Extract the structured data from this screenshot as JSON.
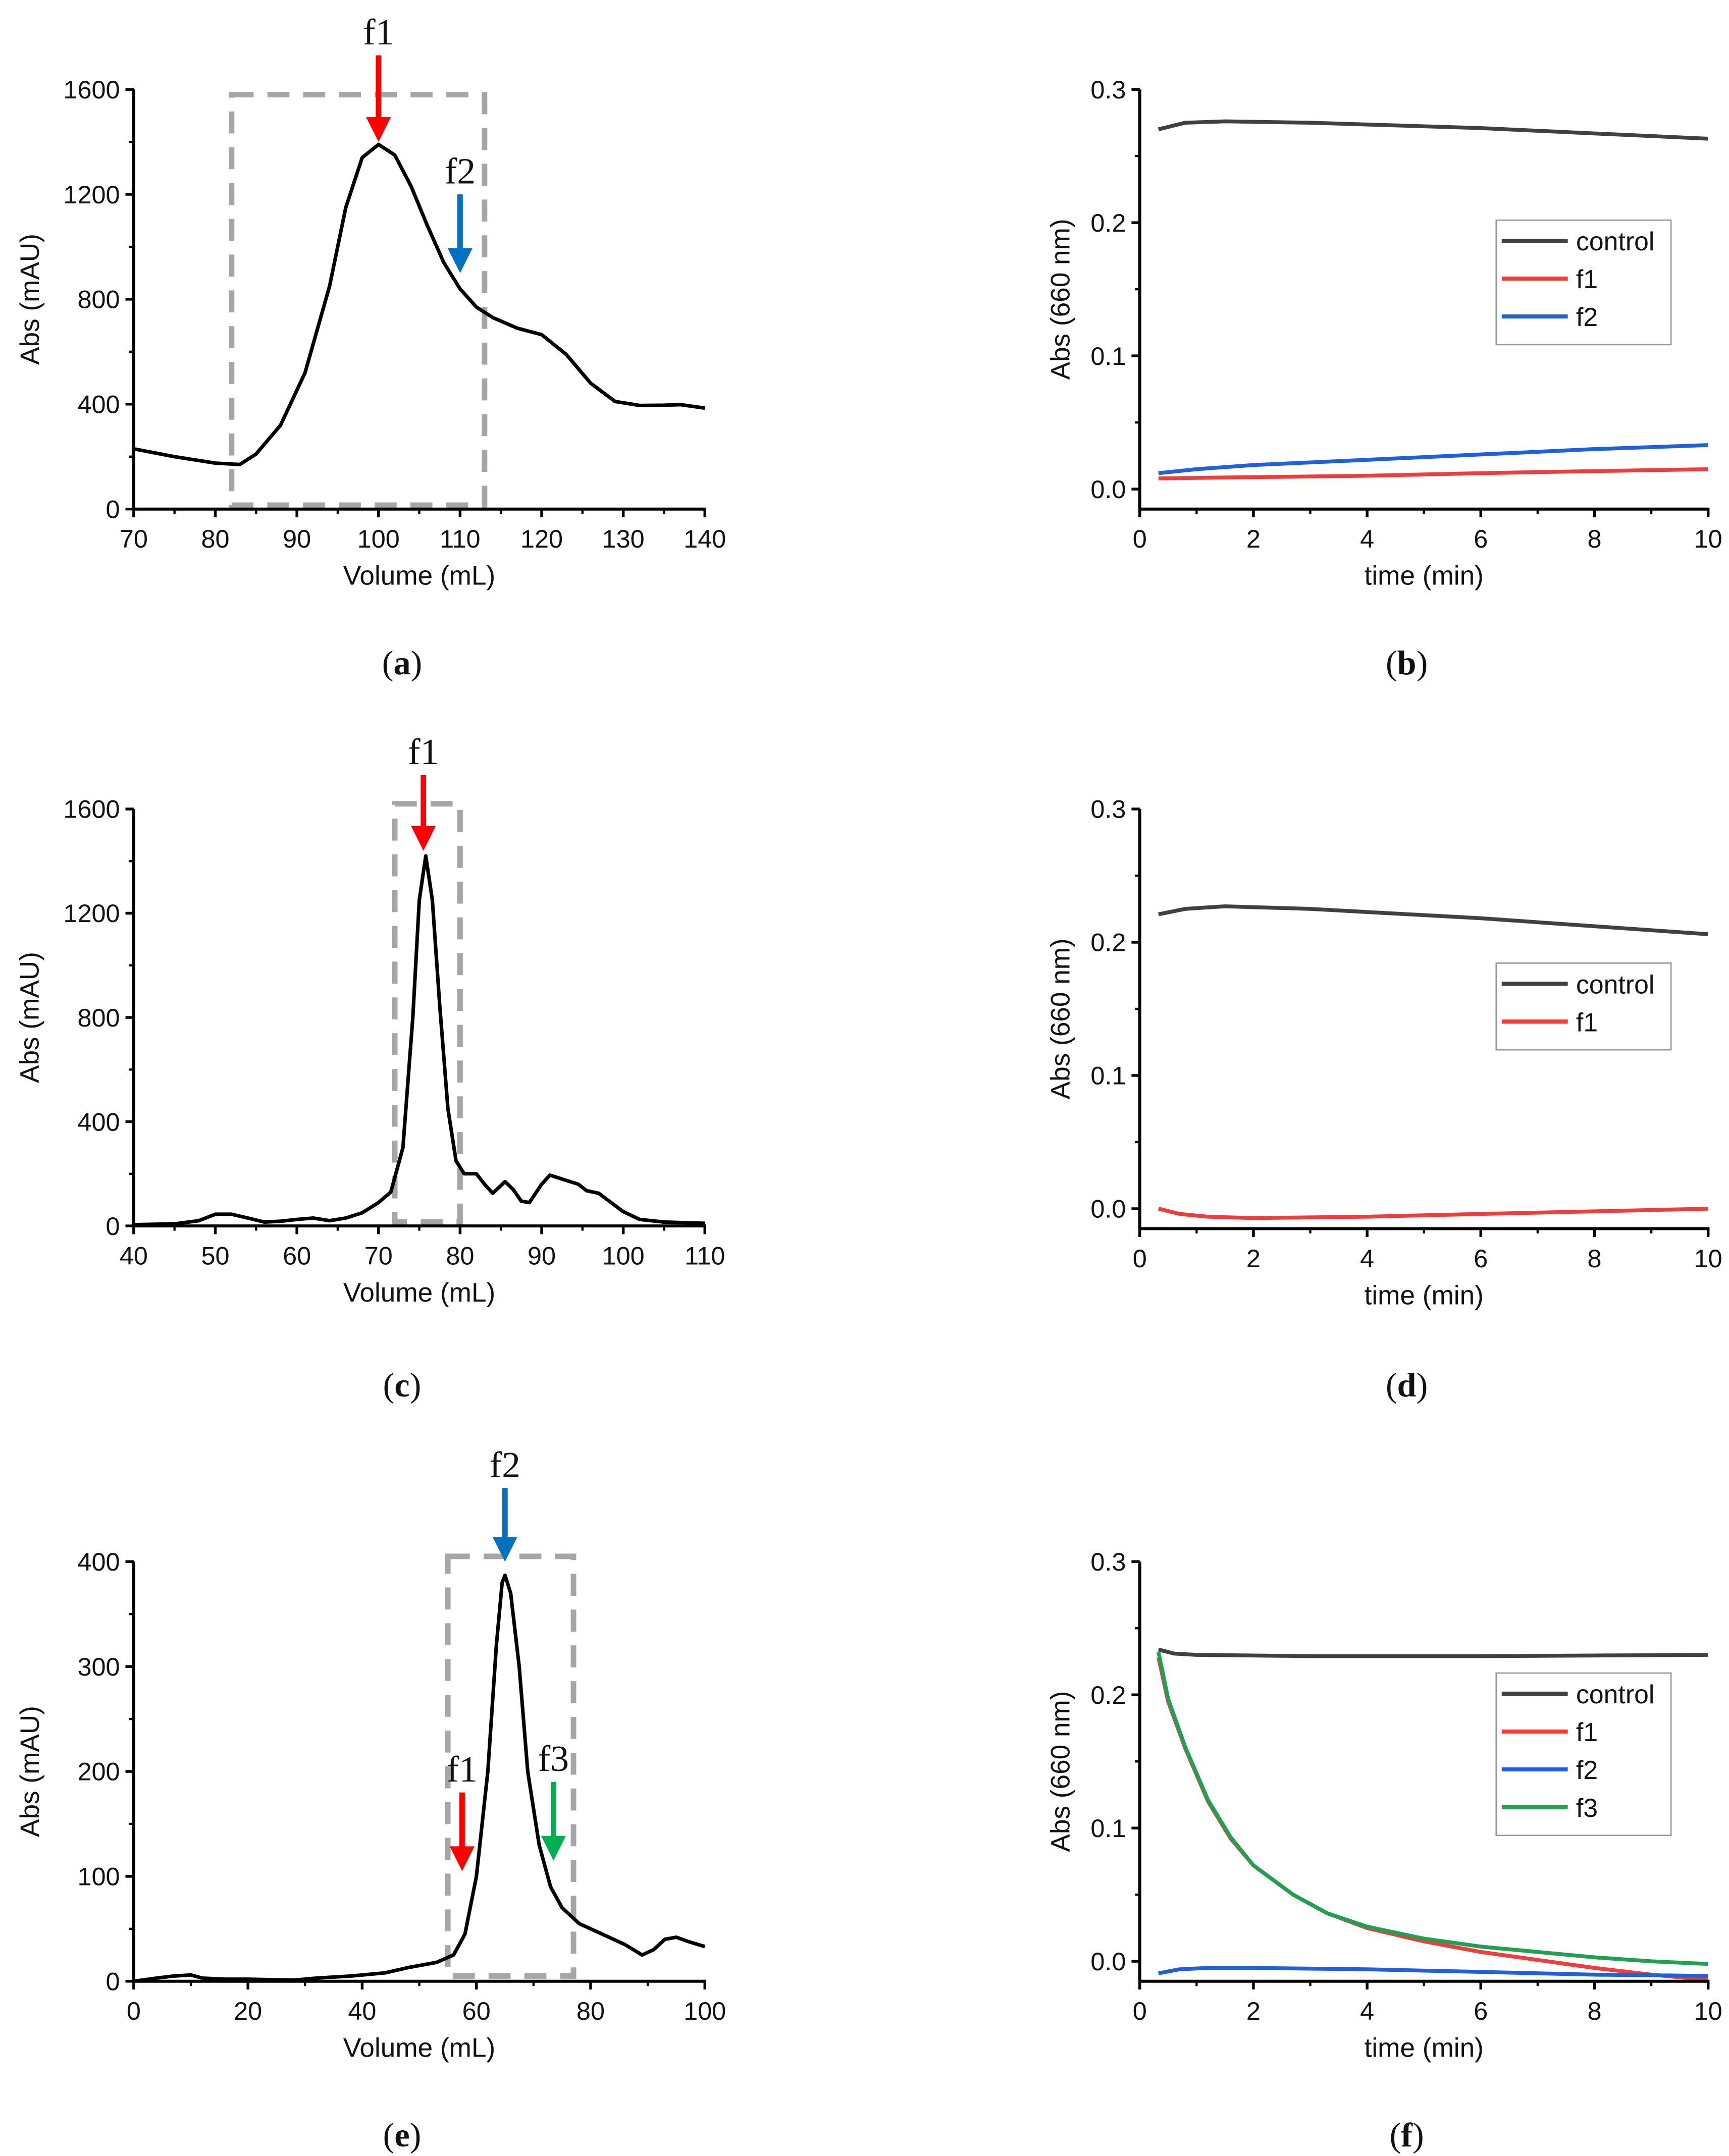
{
  "chart_data": [
    {
      "id": "a",
      "type": "line",
      "caption": [
        "(",
        "a",
        ")"
      ],
      "xlabel": "Volume (mL)",
      "ylabel": "Abs (mAU)",
      "xlim": [
        70,
        140
      ],
      "ylim": [
        0,
        1600
      ],
      "xticks": [
        "70",
        "80",
        "90",
        "100",
        "110",
        "120",
        "130",
        "140"
      ],
      "yticks": [
        "0",
        "400",
        "800",
        "1200",
        "1600"
      ],
      "series": [
        {
          "name": "chromatogram",
          "color": "#000000",
          "points": [
            [
              70,
              230
            ],
            [
              75,
              200
            ],
            [
              80,
              175
            ],
            [
              83,
              170
            ],
            [
              85,
              210
            ],
            [
              88,
              320
            ],
            [
              91,
              520
            ],
            [
              94,
              850
            ],
            [
              96,
              1150
            ],
            [
              98,
              1340
            ],
            [
              100,
              1390
            ],
            [
              102,
              1350
            ],
            [
              104,
              1230
            ],
            [
              106,
              1080
            ],
            [
              108,
              940
            ],
            [
              110,
              840
            ],
            [
              112,
              770
            ],
            [
              114,
              730
            ],
            [
              117,
              690
            ],
            [
              120,
              665
            ],
            [
              123,
              590
            ],
            [
              126,
              480
            ],
            [
              129,
              410
            ],
            [
              132,
              395
            ],
            [
              135,
              396
            ],
            [
              137,
              398
            ],
            [
              140,
              385
            ]
          ]
        }
      ],
      "box": {
        "x": [
          82,
          113
        ],
        "y": [
          15,
          1580
        ],
        "color": "#a6a6a6"
      },
      "arrows": [
        {
          "label": "f1",
          "x": 100,
          "from": 1730,
          "to": 1400,
          "color": "#ff0000"
        },
        {
          "label": "f2",
          "x": 110,
          "from": 1200,
          "to": 900,
          "color": "#0070c0"
        }
      ]
    },
    {
      "id": "b",
      "type": "line",
      "caption": [
        "(",
        "b",
        ")"
      ],
      "xlabel": "time (min)",
      "ylabel": "Abs (660 nm)",
      "xlim": [
        0,
        10
      ],
      "ylim": [
        -0.015,
        0.3
      ],
      "xticks": [
        "0",
        "2",
        "4",
        "6",
        "8",
        "10"
      ],
      "yticks": [
        "0.0",
        "0.1",
        "0.2",
        "0.3"
      ],
      "legend": "right",
      "series": [
        {
          "name": "control",
          "color": "#404040",
          "points": [
            [
              0.33,
              0.27
            ],
            [
              0.8,
              0.275
            ],
            [
              1.5,
              0.276
            ],
            [
              3,
              0.275
            ],
            [
              6,
              0.271
            ],
            [
              8,
              0.267
            ],
            [
              10,
              0.263
            ]
          ]
        },
        {
          "name": "f1",
          "color": "#f03c3c",
          "points": [
            [
              0.33,
              0.008
            ],
            [
              2,
              0.009
            ],
            [
              4,
              0.01
            ],
            [
              6,
              0.012
            ],
            [
              8,
              0.0135
            ],
            [
              10,
              0.015
            ]
          ]
        },
        {
          "name": "f2",
          "color": "#1f5fe0",
          "points": [
            [
              0.33,
              0.012
            ],
            [
              1,
              0.015
            ],
            [
              2,
              0.018
            ],
            [
              4,
              0.022
            ],
            [
              6,
              0.026
            ],
            [
              8,
              0.03
            ],
            [
              10,
              0.033
            ]
          ]
        }
      ]
    },
    {
      "id": "c",
      "type": "line",
      "caption": [
        "(",
        "c",
        ")"
      ],
      "xlabel": "Volume (mL)",
      "ylabel": "Abs (mAU)",
      "xlim": [
        40,
        110
      ],
      "ylim": [
        0,
        1600
      ],
      "xticks": [
        "40",
        "50",
        "60",
        "70",
        "80",
        "90",
        "100",
        "110"
      ],
      "yticks": [
        "0",
        "400",
        "800",
        "1200",
        "1600"
      ],
      "series": [
        {
          "name": "chromatogram",
          "color": "#000000",
          "points": [
            [
              40,
              5
            ],
            [
              45,
              8
            ],
            [
              48,
              20
            ],
            [
              50,
              45
            ],
            [
              52,
              45
            ],
            [
              54,
              30
            ],
            [
              56,
              15
            ],
            [
              58,
              18
            ],
            [
              60,
              25
            ],
            [
              62,
              30
            ],
            [
              64,
              20
            ],
            [
              66,
              30
            ],
            [
              68,
              50
            ],
            [
              70,
              90
            ],
            [
              71.5,
              130
            ],
            [
              73,
              300
            ],
            [
              74.2,
              800
            ],
            [
              75,
              1250
            ],
            [
              75.8,
              1420
            ],
            [
              76.6,
              1250
            ],
            [
              77.5,
              850
            ],
            [
              78.5,
              450
            ],
            [
              79.5,
              250
            ],
            [
              80.5,
              200
            ],
            [
              82,
              200
            ],
            [
              83,
              160
            ],
            [
              84,
              125
            ],
            [
              85.5,
              170
            ],
            [
              86.5,
              140
            ],
            [
              87.5,
              95
            ],
            [
              88.5,
              90
            ],
            [
              90,
              160
            ],
            [
              91,
              195
            ],
            [
              92,
              185
            ],
            [
              93,
              175
            ],
            [
              94.5,
              160
            ],
            [
              95.5,
              135
            ],
            [
              97,
              125
            ],
            [
              98.5,
              90
            ],
            [
              100,
              55
            ],
            [
              102,
              25
            ],
            [
              105,
              15
            ],
            [
              110,
              10
            ]
          ]
        }
      ],
      "box": {
        "x": [
          72,
          80
        ],
        "y": [
          15,
          1620
        ],
        "color": "#a6a6a6"
      },
      "arrows": [
        {
          "label": "f1",
          "x": 75.5,
          "from": 1730,
          "to": 1440,
          "color": "#ff0000"
        }
      ]
    },
    {
      "id": "d",
      "type": "line",
      "caption": [
        "(",
        "d",
        ")"
      ],
      "xlabel": "time (min)",
      "ylabel": "Abs (660 nm)",
      "xlim": [
        0,
        10
      ],
      "ylim": [
        -0.015,
        0.3
      ],
      "xticks": [
        "0",
        "2",
        "4",
        "6",
        "8",
        "10"
      ],
      "yticks": [
        "0.0",
        "0.1",
        "0.2",
        "0.3"
      ],
      "legend": "right",
      "series": [
        {
          "name": "control",
          "color": "#404040",
          "points": [
            [
              0.33,
              0.221
            ],
            [
              0.8,
              0.225
            ],
            [
              1.5,
              0.227
            ],
            [
              3,
              0.225
            ],
            [
              6,
              0.218
            ],
            [
              8,
              0.212
            ],
            [
              10,
              0.206
            ]
          ]
        },
        {
          "name": "f1",
          "color": "#f03c3c",
          "points": [
            [
              0.33,
              0.0
            ],
            [
              0.7,
              -0.004
            ],
            [
              1.2,
              -0.006
            ],
            [
              2,
              -0.007
            ],
            [
              4,
              -0.006
            ],
            [
              6,
              -0.004
            ],
            [
              8,
              -0.002
            ],
            [
              10,
              0.0
            ]
          ]
        }
      ]
    },
    {
      "id": "e",
      "type": "line",
      "caption": [
        "(",
        "e",
        ")"
      ],
      "xlabel": "Volume (mL)",
      "ylabel": "Abs (mAU)",
      "xlim": [
        0,
        100
      ],
      "ylim": [
        0,
        400
      ],
      "xticks": [
        "0",
        "20",
        "40",
        "60",
        "80",
        "100"
      ],
      "yticks": [
        "0",
        "100",
        "200",
        "300",
        "400"
      ],
      "series": [
        {
          "name": "chromatogram",
          "color": "#000000",
          "points": [
            [
              0,
              0
            ],
            [
              4,
              3
            ],
            [
              7,
              5
            ],
            [
              10,
              6
            ],
            [
              12,
              3
            ],
            [
              16,
              2
            ],
            [
              20,
              2
            ],
            [
              28,
              1
            ],
            [
              32,
              3
            ],
            [
              38,
              5
            ],
            [
              44,
              8
            ],
            [
              48,
              13
            ],
            [
              53,
              18
            ],
            [
              56,
              25
            ],
            [
              58,
              45
            ],
            [
              60,
              100
            ],
            [
              62,
              200
            ],
            [
              63.5,
              320
            ],
            [
              64.5,
              380
            ],
            [
              65,
              387
            ],
            [
              66,
              370
            ],
            [
              67.5,
              300
            ],
            [
              69,
              200
            ],
            [
              71,
              130
            ],
            [
              73,
              90
            ],
            [
              75,
              70
            ],
            [
              78,
              55
            ],
            [
              82,
              45
            ],
            [
              86,
              35
            ],
            [
              89,
              25
            ],
            [
              91,
              30
            ],
            [
              93,
              40
            ],
            [
              95,
              42
            ],
            [
              97,
              38
            ],
            [
              100,
              33
            ]
          ]
        }
      ],
      "box": {
        "x": [
          55,
          77
        ],
        "y": [
          5,
          405
        ],
        "color": "#a6a6a6"
      },
      "arrows": [
        {
          "label": "f2",
          "x": 65,
          "from": 470,
          "to": 400,
          "color": "#0070c0"
        },
        {
          "label": "f1",
          "x": 57.5,
          "from": 180,
          "to": 105,
          "color": "#ff0000"
        },
        {
          "label": "f3",
          "x": 73.5,
          "from": 190,
          "to": 115,
          "color": "#00b050"
        }
      ]
    },
    {
      "id": "f",
      "type": "line",
      "caption": [
        "(",
        "f",
        ")"
      ],
      "xlabel": "time (min)",
      "ylabel": "Abs (660 nm)",
      "xlim": [
        0,
        10
      ],
      "ylim": [
        -0.015,
        0.3
      ],
      "xticks": [
        "0",
        "2",
        "4",
        "6",
        "8",
        "10"
      ],
      "yticks": [
        "0.0",
        "0.1",
        "0.2",
        "0.3"
      ],
      "legend": "right",
      "series": [
        {
          "name": "control",
          "color": "#404040",
          "points": [
            [
              0.33,
              0.234
            ],
            [
              0.6,
              0.231
            ],
            [
              1,
              0.23
            ],
            [
              3,
              0.229
            ],
            [
              6,
              0.229
            ],
            [
              10,
              0.23
            ]
          ]
        },
        {
          "name": "f1",
          "color": "#f03c3c",
          "points": [
            [
              0.33,
              0.228
            ],
            [
              0.5,
              0.195
            ],
            [
              0.8,
              0.16
            ],
            [
              1.2,
              0.12
            ],
            [
              1.6,
              0.092
            ],
            [
              2,
              0.072
            ],
            [
              2.7,
              0.05
            ],
            [
              3.3,
              0.036
            ],
            [
              4,
              0.025
            ],
            [
              5,
              0.015
            ],
            [
              6,
              0.007
            ],
            [
              7,
              0.001
            ],
            [
              8,
              -0.005
            ],
            [
              9,
              -0.01
            ],
            [
              10,
              -0.014
            ]
          ]
        },
        {
          "name": "f2",
          "color": "#1f5fe0",
          "points": [
            [
              0.33,
              -0.009
            ],
            [
              0.7,
              -0.006
            ],
            [
              1.2,
              -0.005
            ],
            [
              2,
              -0.005
            ],
            [
              4,
              -0.006
            ],
            [
              6,
              -0.008
            ],
            [
              8,
              -0.01
            ],
            [
              10,
              -0.011
            ]
          ]
        },
        {
          "name": "f3",
          "color": "#20a050",
          "points": [
            [
              0.33,
              0.232
            ],
            [
              0.5,
              0.197
            ],
            [
              0.8,
              0.161
            ],
            [
              1.2,
              0.121
            ],
            [
              1.6,
              0.093
            ],
            [
              2,
              0.072
            ],
            [
              2.7,
              0.05
            ],
            [
              3.3,
              0.036
            ],
            [
              4,
              0.026
            ],
            [
              5,
              0.017
            ],
            [
              6,
              0.011
            ],
            [
              7,
              0.007
            ],
            [
              8,
              0.003
            ],
            [
              9,
              0.0
            ],
            [
              10,
              -0.002
            ]
          ]
        }
      ]
    }
  ]
}
